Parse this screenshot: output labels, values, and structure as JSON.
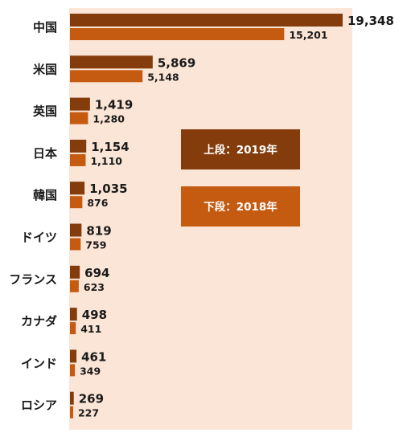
{
  "colors": {
    "plot_background": "#fbe5d6",
    "series_2019": "#843c0c",
    "series_2018": "#c55a11",
    "legend_text": "#ffffff"
  },
  "chart_data": {
    "type": "bar",
    "orientation": "horizontal",
    "categories": [
      "中国",
      "米国",
      "英国",
      "日本",
      "韓国",
      "ドイツ",
      "フランス",
      "カナダ",
      "インド",
      "ロシア"
    ],
    "series": [
      {
        "name": "上段：2019年",
        "values": [
          19348,
          5869,
          1419,
          1154,
          1035,
          819,
          694,
          498,
          461,
          269
        ],
        "labels": [
          "19,348",
          "5,869",
          "1,419",
          "1,154",
          "1,035",
          "819",
          "694",
          "498",
          "461",
          "269"
        ]
      },
      {
        "name": "下段：2018年",
        "values": [
          15201,
          5148,
          1280,
          1110,
          876,
          759,
          623,
          411,
          349,
          227
        ],
        "labels": [
          "15,201",
          "5,148",
          "1,280",
          "1,110",
          "876",
          "759",
          "623",
          "411",
          "349",
          "227"
        ]
      }
    ],
    "legend": {
      "placement": "center-right",
      "entries": [
        "上段：2019年",
        "下段：2018年"
      ]
    },
    "xlim": [
      0,
      19348
    ],
    "grid": false,
    "title": "",
    "xlabel": "",
    "ylabel": ""
  }
}
